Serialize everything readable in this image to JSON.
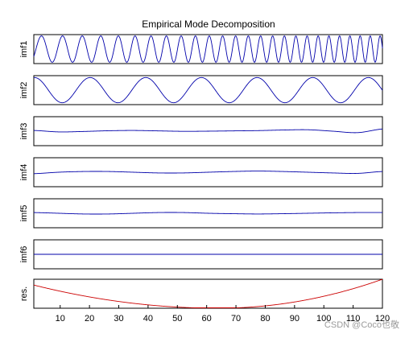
{
  "chart_data": {
    "type": "line",
    "title": "Empirical Mode Decomposition",
    "xlim": [
      1,
      120
    ],
    "x_ticks": [
      "10",
      "20",
      "30",
      "40",
      "50",
      "60",
      "70",
      "80",
      "90",
      "100",
      "110",
      "120"
    ],
    "panels": [
      {
        "label": "imf1",
        "color": "#0000aa",
        "ylim": [
          -1.1,
          1.1
        ],
        "shape": "sine",
        "amplitude": 1.0,
        "cycles_start": 0.13,
        "cycles_end": 0.3
      },
      {
        "label": "imf2",
        "color": "#0000aa",
        "ylim": [
          -1.15,
          1.15
        ],
        "shape": "sine",
        "amplitude": 1.0,
        "period": 19.0
      },
      {
        "label": "imf3",
        "color": "#0000aa",
        "ylim": [
          -1.0,
          1.0
        ],
        "shape": "slow",
        "values": [
          0.05,
          -0.05,
          -0.02,
          0.03,
          0.05,
          0.02,
          -0.01,
          0.0,
          0.02,
          0.04,
          0.08,
          0.1,
          0.0,
          -0.1,
          0.15
        ]
      },
      {
        "label": "imf4",
        "color": "#0000aa",
        "ylim": [
          -1.0,
          1.0
        ],
        "shape": "slow",
        "values": [
          -0.1,
          0.0,
          0.05,
          0.05,
          0.0,
          -0.05,
          -0.05,
          0.0,
          0.05,
          0.08,
          0.05,
          0.0,
          -0.05,
          -0.08,
          0.05
        ]
      },
      {
        "label": "imf5",
        "color": "#0000aa",
        "ylim": [
          -1.0,
          1.0
        ],
        "shape": "slow",
        "values": [
          0.05,
          0.0,
          -0.05,
          -0.05,
          0.0,
          0.05,
          0.05,
          0.0,
          -0.03,
          -0.05,
          -0.03,
          0.0,
          0.03,
          0.05,
          0.05
        ]
      },
      {
        "label": "imf6",
        "color": "#0000aa",
        "ylim": [
          -1.0,
          1.0
        ],
        "shape": "slow",
        "values": [
          0,
          0
        ]
      },
      {
        "label": "res.",
        "color": "#cc0000",
        "ylim": [
          0,
          1.0
        ],
        "shape": "parabola",
        "vertex_x": 64,
        "values_at_ends": [
          0.8,
          1.0
        ]
      }
    ]
  },
  "watermark": "CSDN @Coco也敬"
}
